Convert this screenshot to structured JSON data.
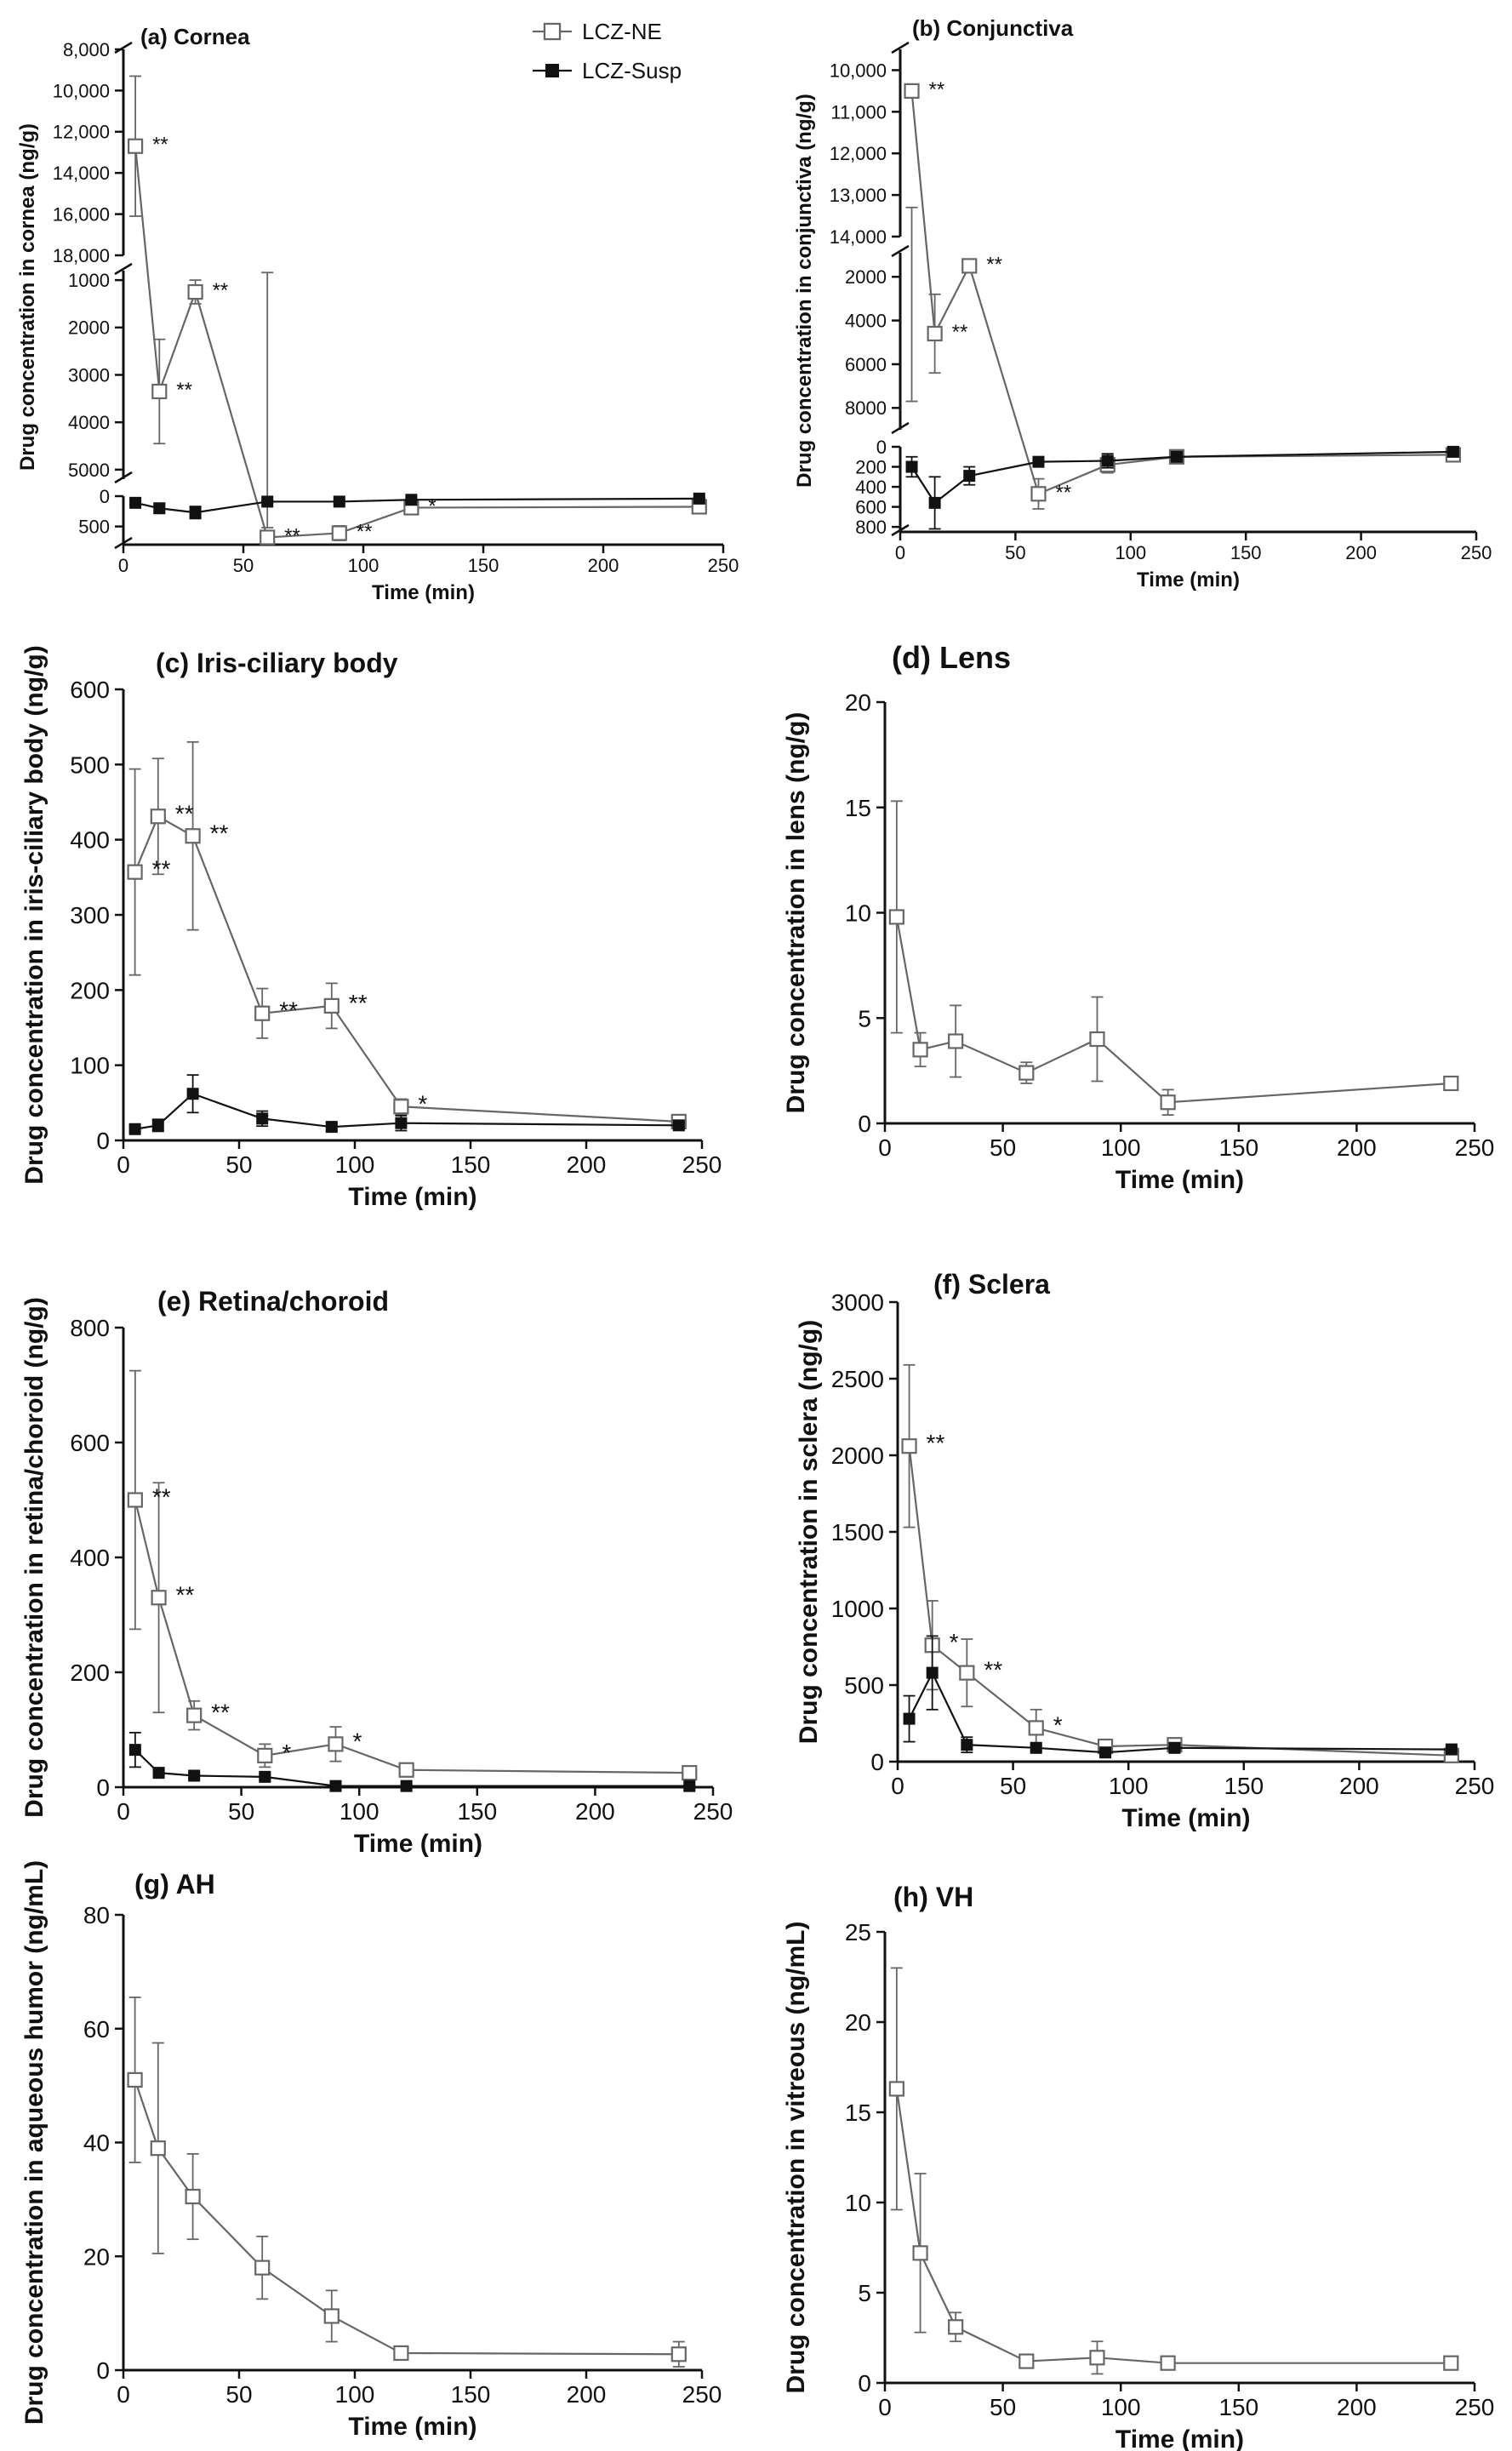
{
  "legend": {
    "ne_label": "LCZ-NE",
    "susp_label": "LCZ-Susp"
  },
  "colors": {
    "ne": "#666666",
    "susp": "#111111",
    "axis": "#111111"
  },
  "chart_data": [
    {
      "id": "cornea",
      "type": "line",
      "title": "(a) Cornea",
      "xlabel": "Time (min)",
      "ylabel": "Drug concentration in cornea (ng/g)",
      "xlim": [
        0,
        250
      ],
      "xticks": [
        "0",
        "50",
        "100",
        "150",
        "200",
        "250"
      ],
      "y_scale": "broken",
      "y_segments": [
        {
          "range": [
            0,
            800
          ],
          "ticks": [
            0,
            500
          ],
          "tick_labels": [
            "0",
            "500"
          ]
        },
        {
          "range": [
            800,
            5200
          ],
          "ticks": [
            1000,
            2000,
            3000,
            4000,
            5000
          ],
          "tick_labels": [
            "1000",
            "2000",
            "3000",
            "4000",
            "5000"
          ]
        },
        {
          "range": [
            8000,
            18000
          ],
          "ticks": [
            8000,
            10000,
            12000,
            14000,
            16000,
            18000
          ],
          "tick_labels": [
            "8,000",
            "10,000",
            "12,000",
            "14,000",
            "16,000",
            "18,000"
          ]
        }
      ],
      "legend_position": "top",
      "series": [
        {
          "name": "LCZ-NE",
          "marker": "open-square",
          "x": [
            5,
            15,
            30,
            60,
            90,
            120,
            240
          ],
          "y": [
            12700,
            3350,
            1250,
            680,
            610,
            190,
            175
          ],
          "err": [
            3400,
            1100,
            250,
            160,
            120,
            50,
            80
          ]
        },
        {
          "name": "LCZ-Susp",
          "marker": "filled-square",
          "x": [
            5,
            15,
            30,
            60,
            90,
            120,
            240
          ],
          "y": [
            110,
            200,
            270,
            90,
            90,
            60,
            40
          ],
          "err": [
            30,
            80,
            100,
            20,
            15,
            15,
            10
          ]
        }
      ],
      "annotations": [
        {
          "x": 5,
          "y": 12700,
          "text": "**"
        },
        {
          "x": 15,
          "y": 3350,
          "text": "**"
        },
        {
          "x": 30,
          "y": 1250,
          "text": "**"
        },
        {
          "x": 60,
          "y": 680,
          "text": "**"
        },
        {
          "x": 90,
          "y": 610,
          "text": "**"
        },
        {
          "x": 120,
          "y": 190,
          "text": "*"
        }
      ]
    },
    {
      "id": "conjunctiva",
      "type": "line",
      "title": "(b) Conjunctiva",
      "xlabel": "Time (min)",
      "ylabel": "Drug concentration in conjunctiva (ng/g)",
      "xlim": [
        0,
        250
      ],
      "xticks": [
        "0",
        "50",
        "100",
        "150",
        "200",
        "250"
      ],
      "y_scale": "broken",
      "y_segments": [
        {
          "range": [
            0,
            850
          ],
          "ticks": [
            0,
            200,
            400,
            600,
            800
          ],
          "tick_labels": [
            "0",
            "200",
            "400",
            "600",
            "800"
          ]
        },
        {
          "range": [
            900,
            9000
          ],
          "ticks": [
            2000,
            4000,
            6000,
            8000
          ],
          "tick_labels": [
            "2000",
            "4000",
            "6000",
            "8000"
          ]
        },
        {
          "range": [
            9500,
            14000
          ],
          "ticks": [
            10000,
            11000,
            12000,
            13000,
            14000
          ],
          "tick_labels": [
            "10,000",
            "11,000",
            "12,000",
            "13,000",
            "14,000"
          ]
        }
      ],
      "series": [
        {
          "name": "LCZ-NE",
          "marker": "open-square",
          "x": [
            5,
            15,
            30,
            60,
            90,
            120,
            240
          ],
          "y": [
            10500,
            4600,
            1500,
            470,
            180,
            100,
            80
          ],
          "err": [
            2800,
            1800,
            200,
            150,
            80,
            30,
            50
          ]
        },
        {
          "name": "LCZ-Susp",
          "marker": "filled-square",
          "x": [
            5,
            15,
            30,
            60,
            90,
            120,
            240
          ],
          "y": [
            200,
            560,
            290,
            150,
            140,
            100,
            50
          ],
          "err": [
            100,
            260,
            90,
            20,
            70,
            30,
            20
          ]
        }
      ],
      "annotations": [
        {
          "x": 5,
          "y": 10500,
          "text": "**"
        },
        {
          "x": 15,
          "y": 4600,
          "text": "**"
        },
        {
          "x": 30,
          "y": 1500,
          "text": "**"
        },
        {
          "x": 60,
          "y": 470,
          "text": "**"
        }
      ]
    },
    {
      "id": "iris",
      "type": "line",
      "title": "(c) Iris-ciliary body",
      "xlabel": "Time (min)",
      "ylabel": "Drug concentration in iris-ciliary body (ng/g)",
      "xlim": [
        0,
        250
      ],
      "xticks": [
        "0",
        "50",
        "100",
        "150",
        "200",
        "250"
      ],
      "ylim": [
        0,
        600
      ],
      "yticks": [
        "0",
        "100",
        "200",
        "300",
        "400",
        "500",
        "600"
      ],
      "series": [
        {
          "name": "LCZ-NE",
          "marker": "open-square",
          "x": [
            5,
            15,
            30,
            60,
            90,
            120,
            240
          ],
          "y": [
            357,
            431,
            405,
            169,
            179,
            45,
            25
          ],
          "err": [
            137,
            77,
            125,
            33,
            30,
            10,
            5
          ]
        },
        {
          "name": "LCZ-Susp",
          "marker": "filled-square",
          "x": [
            5,
            15,
            30,
            60,
            90,
            120,
            240
          ],
          "y": [
            15,
            20,
            62,
            29,
            18,
            23,
            20
          ],
          "err": [
            3,
            8,
            25,
            10,
            5,
            10,
            4
          ]
        }
      ],
      "annotations": [
        {
          "x": 5,
          "y": 357,
          "text": "**"
        },
        {
          "x": 15,
          "y": 431,
          "text": "**"
        },
        {
          "x": 30,
          "y": 405,
          "text": "**"
        },
        {
          "x": 60,
          "y": 169,
          "text": "**"
        },
        {
          "x": 90,
          "y": 179,
          "text": "**"
        },
        {
          "x": 120,
          "y": 45,
          "text": "*"
        }
      ]
    },
    {
      "id": "lens",
      "type": "line",
      "title": "(d) Lens",
      "xlabel": "Time (min)",
      "ylabel": "Drug concentration in lens (ng/g)",
      "xlim": [
        0,
        250
      ],
      "xticks": [
        "0",
        "50",
        "100",
        "150",
        "200",
        "250"
      ],
      "ylim": [
        0,
        20
      ],
      "yticks": [
        "0",
        "5",
        "10",
        "15",
        "20"
      ],
      "series": [
        {
          "name": "LCZ-NE",
          "marker": "open-square",
          "x": [
            5,
            15,
            30,
            60,
            90,
            120,
            240
          ],
          "y": [
            9.8,
            3.5,
            3.9,
            2.4,
            4.0,
            1.0,
            1.9
          ],
          "err": [
            5.5,
            0.8,
            1.7,
            0.5,
            2.0,
            0.6,
            0.2
          ]
        }
      ],
      "annotations": []
    },
    {
      "id": "retina",
      "type": "line",
      "title": "(e) Retina/choroid",
      "xlabel": "Time (min)",
      "ylabel": "Drug concentration in retina/choroid (ng/g)",
      "xlim": [
        0,
        250
      ],
      "xticks": [
        "0",
        "50",
        "100",
        "150",
        "200",
        "250"
      ],
      "ylim": [
        0,
        800
      ],
      "yticks": [
        "0",
        "200",
        "400",
        "600",
        "800"
      ],
      "series": [
        {
          "name": "LCZ-NE",
          "marker": "open-square",
          "x": [
            5,
            15,
            30,
            60,
            90,
            120,
            240
          ],
          "y": [
            500,
            330,
            125,
            55,
            75,
            30,
            25
          ],
          "err": [
            225,
            200,
            25,
            20,
            30,
            5,
            5
          ]
        },
        {
          "name": "LCZ-Susp",
          "marker": "filled-square",
          "x": [
            5,
            15,
            30,
            60,
            90,
            120,
            240
          ],
          "y": [
            65,
            25,
            20,
            18,
            2,
            2,
            2
          ],
          "err": [
            30,
            5,
            5,
            5,
            2,
            2,
            2
          ]
        }
      ],
      "annotations": [
        {
          "x": 5,
          "y": 500,
          "text": "**"
        },
        {
          "x": 15,
          "y": 330,
          "text": "**"
        },
        {
          "x": 30,
          "y": 125,
          "text": "**"
        },
        {
          "x": 60,
          "y": 55,
          "text": "*"
        },
        {
          "x": 90,
          "y": 75,
          "text": "*"
        }
      ]
    },
    {
      "id": "sclera",
      "type": "line",
      "title": "(f) Sclera",
      "xlabel": "Time (min)",
      "ylabel": "Drug concentration in sclera (ng/g)",
      "xlim": [
        0,
        250
      ],
      "xticks": [
        "0",
        "50",
        "100",
        "150",
        "200",
        "250"
      ],
      "ylim": [
        0,
        3000
      ],
      "yticks": [
        "0",
        "500",
        "1000",
        "1500",
        "2000",
        "2500",
        "3000"
      ],
      "series": [
        {
          "name": "LCZ-NE",
          "marker": "open-square",
          "x": [
            5,
            15,
            30,
            60,
            90,
            120,
            240
          ],
          "y": [
            2060,
            760,
            580,
            220,
            100,
            110,
            40
          ],
          "err": [
            530,
            290,
            220,
            120,
            20,
            20,
            10
          ]
        },
        {
          "name": "LCZ-Susp",
          "marker": "filled-square",
          "x": [
            5,
            15,
            30,
            60,
            90,
            120,
            240
          ],
          "y": [
            280,
            580,
            110,
            90,
            60,
            90,
            80
          ],
          "err": [
            150,
            240,
            50,
            20,
            10,
            10,
            10
          ]
        }
      ],
      "annotations": [
        {
          "x": 5,
          "y": 2060,
          "text": "**"
        },
        {
          "x": 15,
          "y": 760,
          "text": "*"
        },
        {
          "x": 30,
          "y": 580,
          "text": "**"
        },
        {
          "x": 60,
          "y": 220,
          "text": "*"
        }
      ]
    },
    {
      "id": "ah",
      "type": "line",
      "title": "(g) AH",
      "xlabel": "Time (min)",
      "ylabel": "Drug concentration in aqueous humor (ng/mL)",
      "xlim": [
        0,
        250
      ],
      "xticks": [
        "0",
        "50",
        "100",
        "150",
        "200",
        "250"
      ],
      "ylim": [
        0,
        80
      ],
      "yticks": [
        "0",
        "20",
        "40",
        "60",
        "80"
      ],
      "series": [
        {
          "name": "LCZ-NE",
          "marker": "open-square",
          "x": [
            5,
            15,
            30,
            60,
            90,
            120,
            240
          ],
          "y": [
            51,
            39,
            30.5,
            18,
            9.5,
            3,
            2.8
          ],
          "err": [
            14.5,
            18.5,
            7.5,
            5.5,
            4.5,
            1.2,
            2.2
          ]
        }
      ],
      "annotations": []
    },
    {
      "id": "vh",
      "type": "line",
      "title": "(h) VH",
      "xlabel": "Time (min)",
      "ylabel": "Drug concentration in vitreous (ng/mL)",
      "xlim": [
        0,
        250
      ],
      "xticks": [
        "0",
        "50",
        "100",
        "150",
        "200",
        "250"
      ],
      "ylim": [
        0,
        25
      ],
      "yticks": [
        "0",
        "5",
        "10",
        "15",
        "20",
        "25"
      ],
      "series": [
        {
          "name": "LCZ-NE",
          "marker": "open-square",
          "x": [
            5,
            15,
            30,
            60,
            90,
            120,
            240
          ],
          "y": [
            16.3,
            7.2,
            3.1,
            1.2,
            1.4,
            1.1,
            1.1
          ],
          "err": [
            6.7,
            4.4,
            0.8,
            0.15,
            0.9,
            0.1,
            0.1
          ]
        }
      ],
      "annotations": []
    }
  ]
}
